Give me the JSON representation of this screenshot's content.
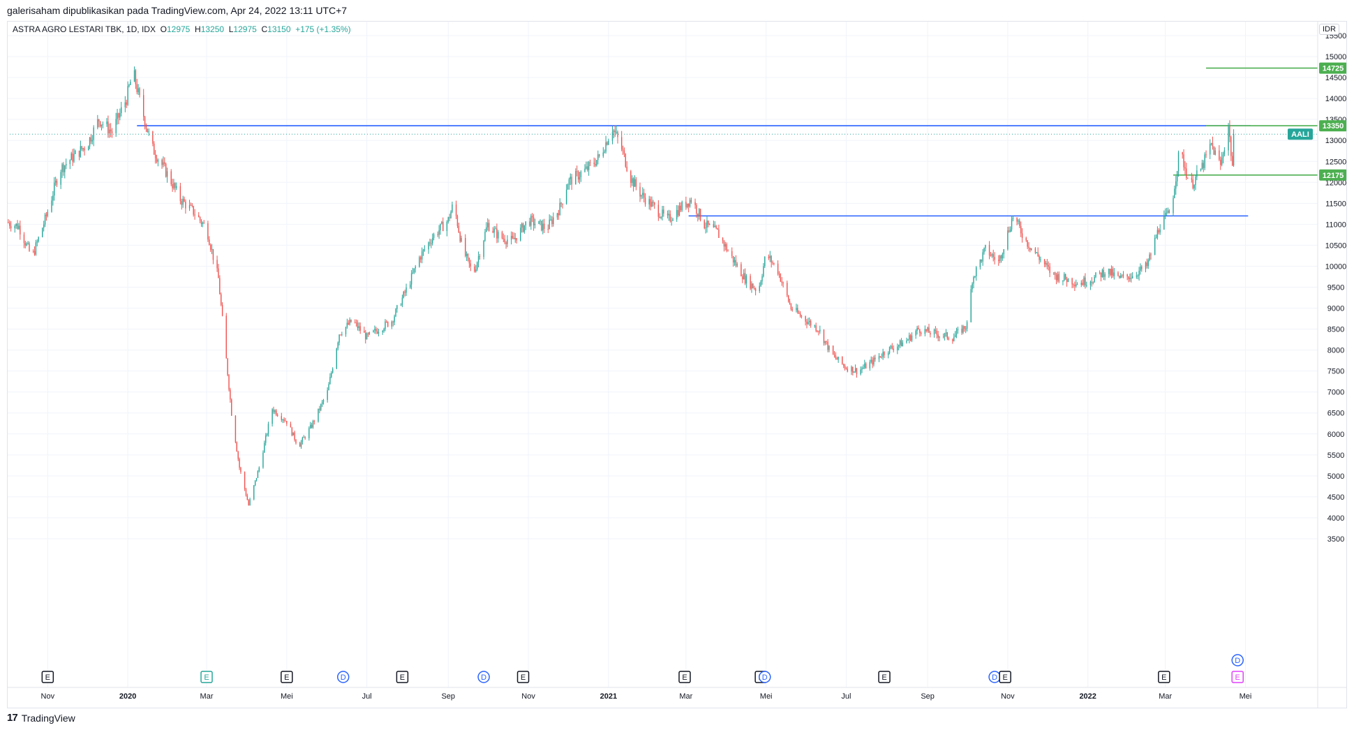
{
  "header": {
    "published_by": "galerisaham dipublikasikan pada TradingView.com, Apr 24, 2022 13:11 UTC+7"
  },
  "footer": {
    "logo_glyph": "17",
    "brand": "TradingView"
  },
  "legend": {
    "symbol": "ASTRA AGRO LESTARI TBK, 1D, IDX",
    "o_label": "O",
    "o": "12975",
    "h_label": "H",
    "h": "13250",
    "l_label": "L",
    "l": "12975",
    "c_label": "C",
    "c": "13150",
    "change": "+175 (+1.35%)"
  },
  "currency": "IDR",
  "colors": {
    "up": "#26a69a",
    "down": "#ef5350",
    "hline": "#2962ff",
    "target": "#4caf50",
    "grid": "#f0f3fa"
  },
  "chart_data": {
    "type": "candlestick",
    "ylim": [
      3200,
      15850
    ],
    "y_ticks": [
      3500,
      4000,
      4500,
      5000,
      5500,
      6000,
      6500,
      7000,
      7500,
      8000,
      8500,
      9000,
      9500,
      10000,
      10500,
      11000,
      11500,
      12000,
      12500,
      13000,
      13500,
      14000,
      14500,
      15000,
      15500
    ],
    "x_labels": [
      {
        "label": "Nov",
        "date": "2019-11-01",
        "bold": false
      },
      {
        "label": "2020",
        "date": "2020-01-01",
        "bold": true
      },
      {
        "label": "Mar",
        "date": "2020-03-01",
        "bold": false
      },
      {
        "label": "Mei",
        "date": "2020-05-01",
        "bold": false
      },
      {
        "label": "Jul",
        "date": "2020-07-01",
        "bold": false
      },
      {
        "label": "Sep",
        "date": "2020-09-01",
        "bold": false
      },
      {
        "label": "Nov",
        "date": "2020-11-01",
        "bold": false
      },
      {
        "label": "2021",
        "date": "2021-01-01",
        "bold": true
      },
      {
        "label": "Mar",
        "date": "2021-03-01",
        "bold": false
      },
      {
        "label": "Mei",
        "date": "2021-05-01",
        "bold": false
      },
      {
        "label": "Jul",
        "date": "2021-07-01",
        "bold": false
      },
      {
        "label": "Sep",
        "date": "2021-09-01",
        "bold": false
      },
      {
        "label": "Nov",
        "date": "2021-11-01",
        "bold": false
      },
      {
        "label": "2022",
        "date": "2022-01-01",
        "bold": true
      },
      {
        "label": "Mar",
        "date": "2022-03-01",
        "bold": false
      },
      {
        "label": "Mei",
        "date": "2022-05-01",
        "bold": false
      }
    ],
    "x_range": [
      "2019-10-01",
      "2022-06-25"
    ],
    "price_path": [
      [
        "2019-10-01",
        11050
      ],
      [
        "2019-10-10",
        10950
      ],
      [
        "2019-10-20",
        10200
      ],
      [
        "2019-10-31",
        11200
      ],
      [
        "2019-11-10",
        12300
      ],
      [
        "2019-11-20",
        12600
      ],
      [
        "2019-12-01",
        12900
      ],
      [
        "2019-12-10",
        13500
      ],
      [
        "2019-12-20",
        13200
      ],
      [
        "2019-12-31",
        14000
      ],
      [
        "2020-01-05",
        14650
      ],
      [
        "2020-01-12",
        13700
      ],
      [
        "2020-01-20",
        12800
      ],
      [
        "2020-01-31",
        12200
      ],
      [
        "2020-02-10",
        11600
      ],
      [
        "2020-02-20",
        11300
      ],
      [
        "2020-03-01",
        10900
      ],
      [
        "2020-03-10",
        9700
      ],
      [
        "2020-03-14",
        8400
      ],
      [
        "2020-03-20",
        6500
      ],
      [
        "2020-03-26",
        5200
      ],
      [
        "2020-04-02",
        4300
      ],
      [
        "2020-04-10",
        5200
      ],
      [
        "2020-04-20",
        6600
      ],
      [
        "2020-05-01",
        6300
      ],
      [
        "2020-05-10",
        5700
      ],
      [
        "2020-05-20",
        6200
      ],
      [
        "2020-06-01",
        7000
      ],
      [
        "2020-06-10",
        8400
      ],
      [
        "2020-06-20",
        8700
      ],
      [
        "2020-07-01",
        8300
      ],
      [
        "2020-07-10",
        8500
      ],
      [
        "2020-07-20",
        8700
      ],
      [
        "2020-08-01",
        9500
      ],
      [
        "2020-08-10",
        10200
      ],
      [
        "2020-08-20",
        10700
      ],
      [
        "2020-09-01",
        11100
      ],
      [
        "2020-09-05",
        11500
      ],
      [
        "2020-09-12",
        10400
      ],
      [
        "2020-09-20",
        9800
      ],
      [
        "2020-10-01",
        11000
      ],
      [
        "2020-10-10",
        10700
      ],
      [
        "2020-10-20",
        10600
      ],
      [
        "2020-11-01",
        11100
      ],
      [
        "2020-11-15",
        10900
      ],
      [
        "2020-11-25",
        11400
      ],
      [
        "2020-12-01",
        12000
      ],
      [
        "2020-12-15",
        12300
      ],
      [
        "2020-12-25",
        12600
      ],
      [
        "2021-01-04",
        13300
      ],
      [
        "2021-01-10",
        12900
      ],
      [
        "2021-01-18",
        12100
      ],
      [
        "2021-01-26",
        11700
      ],
      [
        "2021-02-05",
        11400
      ],
      [
        "2021-02-15",
        11100
      ],
      [
        "2021-02-25",
        11400
      ],
      [
        "2021-03-05",
        11600
      ],
      [
        "2021-03-15",
        11000
      ],
      [
        "2021-03-25",
        10800
      ],
      [
        "2021-04-05",
        10200
      ],
      [
        "2021-04-15",
        9700
      ],
      [
        "2021-04-25",
        9400
      ],
      [
        "2021-05-01",
        10300
      ],
      [
        "2021-05-10",
        9900
      ],
      [
        "2021-05-20",
        9000
      ],
      [
        "2021-06-01",
        8700
      ],
      [
        "2021-06-10",
        8500
      ],
      [
        "2021-06-20",
        7900
      ],
      [
        "2021-06-30",
        7600
      ],
      [
        "2021-07-10",
        7500
      ],
      [
        "2021-07-20",
        7700
      ],
      [
        "2021-08-01",
        8000
      ],
      [
        "2021-08-15",
        8200
      ],
      [
        "2021-08-25",
        8500
      ],
      [
        "2021-09-05",
        8400
      ],
      [
        "2021-09-20",
        8300
      ],
      [
        "2021-10-01",
        8600
      ],
      [
        "2021-10-05",
        9700
      ],
      [
        "2021-10-15",
        10400
      ],
      [
        "2021-10-25",
        10100
      ],
      [
        "2021-11-01",
        10800
      ],
      [
        "2021-11-05",
        11200
      ],
      [
        "2021-11-15",
        10600
      ],
      [
        "2021-11-25",
        10200
      ],
      [
        "2021-12-05",
        9800
      ],
      [
        "2021-12-15",
        9700
      ],
      [
        "2021-12-25",
        9600
      ],
      [
        "2022-01-05",
        9700
      ],
      [
        "2022-01-15",
        9900
      ],
      [
        "2022-01-25",
        9700
      ],
      [
        "2022-02-05",
        9800
      ],
      [
        "2022-02-15",
        10000
      ],
      [
        "2022-02-25",
        11000
      ],
      [
        "2022-03-05",
        11300
      ],
      [
        "2022-03-12",
        12800
      ],
      [
        "2022-03-20",
        11900
      ],
      [
        "2022-03-28",
        12300
      ],
      [
        "2022-04-05",
        12900
      ],
      [
        "2022-04-12",
        12400
      ],
      [
        "2022-04-18",
        13350
      ],
      [
        "2022-04-21",
        12400
      ],
      [
        "2022-04-22",
        13150
      ]
    ],
    "horizontal_lines": [
      {
        "name": "resistance-13350",
        "price": 13350,
        "from": "2020-01-08",
        "to": "2022-05-05",
        "color": "#2962ff"
      },
      {
        "name": "support-11200",
        "price": 11200,
        "from": "2021-03-03",
        "to": "2022-05-03",
        "color": "#2962ff"
      },
      {
        "name": "target-14725",
        "price": 14725,
        "from": "2022-04-01",
        "to": "2022-06-25",
        "color": "#4caf50"
      },
      {
        "name": "level-13350",
        "price": 13350,
        "from": "2022-04-01",
        "to": "2022-06-25",
        "color": "#4caf50"
      },
      {
        "name": "level-12175",
        "price": 12175,
        "from": "2022-03-07",
        "to": "2022-06-25",
        "color": "#4caf50"
      }
    ],
    "price_labels": [
      {
        "text": "14725",
        "price": 14725,
        "color": "#4caf50"
      },
      {
        "text": "13350",
        "price": 13350,
        "color": "#4caf50"
      },
      {
        "text": "12175",
        "price": 12175,
        "color": "#4caf50"
      }
    ],
    "last_price": {
      "symbol": "AALI",
      "price": 13150,
      "color": "#26a69a"
    },
    "events": [
      {
        "type": "E",
        "date": "2019-11-01",
        "color": "#131722"
      },
      {
        "type": "E",
        "date": "2020-03-01",
        "color": "#26a69a"
      },
      {
        "type": "E",
        "date": "2020-05-01",
        "color": "#131722"
      },
      {
        "type": "D",
        "date": "2020-06-13",
        "color": "#2962ff"
      },
      {
        "type": "E",
        "date": "2020-07-28",
        "color": "#131722"
      },
      {
        "type": "D",
        "date": "2020-09-28",
        "color": "#2962ff"
      },
      {
        "type": "E",
        "date": "2020-10-28",
        "color": "#131722"
      },
      {
        "type": "E",
        "date": "2021-02-28",
        "color": "#131722"
      },
      {
        "type": "E",
        "date": "2021-04-27",
        "color": "#131722"
      },
      {
        "type": "D",
        "date": "2021-04-30",
        "color": "#2962ff"
      },
      {
        "type": "E",
        "date": "2021-07-30",
        "color": "#131722"
      },
      {
        "type": "D",
        "date": "2021-10-22",
        "color": "#2962ff"
      },
      {
        "type": "E",
        "date": "2021-10-30",
        "color": "#131722"
      },
      {
        "type": "E",
        "date": "2022-02-28",
        "color": "#131722"
      },
      {
        "type": "D",
        "date": "2022-04-25",
        "color": "#2962ff",
        "row": "upper"
      },
      {
        "type": "E",
        "date": "2022-04-25",
        "color": "#e040fb"
      }
    ]
  }
}
